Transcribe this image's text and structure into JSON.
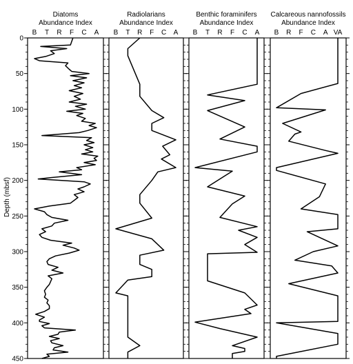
{
  "ylabel": "Depth (mbsf)",
  "depth_ticks": [
    "0",
    "50",
    "100",
    "150",
    "200",
    "250",
    "300",
    "350",
    "400",
    "450"
  ],
  "chart_data": [
    {
      "type": "line",
      "title_lines": [
        "Diatoms",
        "Abundance  Index"
      ],
      "categories": [
        "B",
        "T",
        "R",
        "F",
        "C",
        "A"
      ],
      "depth_range": [
        0,
        450
      ],
      "series": [
        {
          "points": [
            [
              0,
              3.1
            ],
            [
              10,
              2.9
            ],
            [
              12,
              0.5
            ],
            [
              15,
              2.6
            ],
            [
              18,
              1.3
            ],
            [
              22,
              1.6
            ],
            [
              26,
              0.9
            ],
            [
              29,
              0.0
            ],
            [
              32,
              0.4
            ],
            [
              35,
              2.7
            ],
            [
              39,
              2.5
            ],
            [
              44,
              2.8
            ],
            [
              47,
              3.0
            ],
            [
              50,
              4.4
            ],
            [
              53,
              2.9
            ],
            [
              56,
              4.2
            ],
            [
              60,
              3.1
            ],
            [
              63,
              4.0
            ],
            [
              67,
              3.2
            ],
            [
              70,
              3.8
            ],
            [
              74,
              2.8
            ],
            [
              78,
              3.9
            ],
            [
              82,
              3.2
            ],
            [
              86,
              3.7
            ],
            [
              90,
              2.8
            ],
            [
              93,
              4.2
            ],
            [
              96,
              3.3
            ],
            [
              100,
              4.1
            ],
            [
              103,
              2.6
            ],
            [
              106,
              3.9
            ],
            [
              109,
              3.4
            ],
            [
              113,
              4.1
            ],
            [
              117,
              3.8
            ],
            [
              120,
              4.9
            ],
            [
              123,
              4.4
            ],
            [
              126,
              5.0
            ],
            [
              130,
              4.3
            ],
            [
              133,
              3.6
            ],
            [
              137,
              0.6
            ],
            [
              140,
              4.6
            ],
            [
              144,
              4.2
            ],
            [
              147,
              4.8
            ],
            [
              150,
              4.0
            ],
            [
              154,
              4.7
            ],
            [
              157,
              4.1
            ],
            [
              160,
              4.7
            ],
            [
              163,
              3.8
            ],
            [
              166,
              5.1
            ],
            [
              169,
              4.8
            ],
            [
              172,
              5.0
            ],
            [
              175,
              4.0
            ],
            [
              178,
              4.9
            ],
            [
              182,
              3.4
            ],
            [
              185,
              3.8
            ],
            [
              188,
              2.0
            ],
            [
              192,
              3.8
            ],
            [
              196,
              1.4
            ],
            [
              198,
              0.3
            ],
            [
              202,
              4.0
            ],
            [
              205,
              4.5
            ],
            [
              209,
              4.0
            ],
            [
              212,
              3.5
            ],
            [
              216,
              4.0
            ],
            [
              220,
              3.2
            ],
            [
              224,
              3.5
            ],
            [
              228,
              3.2
            ],
            [
              232,
              2.9
            ],
            [
              236,
              1.2
            ],
            [
              240,
              0.0
            ],
            [
              244,
              0.8
            ],
            [
              248,
              1.0
            ],
            [
              252,
              1.4
            ],
            [
              256,
              2.7
            ],
            [
              260,
              1.6
            ],
            [
              264,
              1.4
            ],
            [
              268,
              0.6
            ],
            [
              272,
              0.9
            ],
            [
              276,
              0.4
            ],
            [
              280,
              0.6
            ],
            [
              284,
              1.3
            ],
            [
              288,
              3.0
            ],
            [
              291,
              2.3
            ],
            [
              295,
              3.2
            ],
            [
              298,
              3.6
            ],
            [
              302,
              2.8
            ],
            [
              306,
              1.7
            ],
            [
              310,
              1.2
            ],
            [
              314,
              1.0
            ],
            [
              318,
              1.1
            ],
            [
              322,
              1.9
            ],
            [
              326,
              1.4
            ],
            [
              330,
              2.3
            ],
            [
              334,
              1.1
            ],
            [
              338,
              1.4
            ],
            [
              342,
              1.3
            ],
            [
              346,
              1.2
            ],
            [
              350,
              1.0
            ],
            [
              355,
              0.8
            ],
            [
              360,
              0.9
            ],
            [
              364,
              0.8
            ],
            [
              368,
              1.1
            ],
            [
              372,
              1.0
            ],
            [
              376,
              1.2
            ],
            [
              380,
              1.2
            ],
            [
              384,
              0.8
            ],
            [
              388,
              0.1
            ],
            [
              392,
              0.8
            ],
            [
              396,
              0.4
            ],
            [
              398,
              0.4
            ],
            [
              401,
              1.2
            ],
            [
              404,
              0.6
            ],
            [
              407,
              0.8
            ],
            [
              410,
              3.3
            ],
            [
              413,
              2.0
            ],
            [
              416,
              1.9
            ],
            [
              419,
              1.2
            ],
            [
              422,
              2.0
            ],
            [
              425,
              1.3
            ],
            [
              428,
              1.4
            ],
            [
              432,
              2.3
            ],
            [
              435,
              1.6
            ],
            [
              438,
              1.5
            ],
            [
              441,
              2.7
            ],
            [
              444,
              1.0
            ],
            [
              447,
              1.2
            ],
            [
              450,
              0.6
            ]
          ]
        }
      ]
    },
    {
      "type": "line",
      "title_lines": [
        "Radiolarians",
        "Abundance  Index"
      ],
      "categories": [
        "B",
        "T",
        "R",
        "F",
        "C",
        "A"
      ],
      "depth_range": [
        0,
        450
      ],
      "series": [
        {
          "points": [
            [
              0,
              2.0
            ],
            [
              15,
              1.0
            ],
            [
              25,
              1.0
            ],
            [
              65,
              2.0
            ],
            [
              82,
              2.0
            ],
            [
              102,
              3.0
            ],
            [
              112,
              4.0
            ],
            [
              120,
              3.0
            ],
            [
              130,
              3.0
            ],
            [
              143,
              5.0
            ],
            [
              152,
              3.9
            ],
            [
              164,
              4.5
            ],
            [
              170,
              3.8
            ],
            [
              182,
              5.0
            ],
            [
              188,
              3.5
            ],
            [
              200,
              3.0
            ],
            [
              220,
              2.0
            ],
            [
              232,
              2.0
            ],
            [
              253,
              3.0
            ],
            [
              268,
              0.0
            ],
            [
              282,
              3.0
            ],
            [
              298,
              4.0
            ],
            [
              305,
              2.0
            ],
            [
              318,
              2.0
            ],
            [
              325,
              3.0
            ],
            [
              335,
              3.0
            ],
            [
              340,
              1.0
            ],
            [
              358,
              0.0
            ],
            [
              362,
              1.0
            ],
            [
              420,
              1.0
            ],
            [
              432,
              2.0
            ],
            [
              441,
              1.0
            ],
            [
              450,
              1.0
            ]
          ]
        }
      ]
    },
    {
      "type": "line",
      "title_lines": [
        "Benthic foraminifers",
        "Abundance  Index"
      ],
      "categories": [
        "B",
        "T",
        "R",
        "F",
        "C",
        "A"
      ],
      "depth_range": [
        0,
        450
      ],
      "series": [
        {
          "points": [
            [
              0,
              5.0
            ],
            [
              65,
              5.0
            ],
            [
              80,
              1.0
            ],
            [
              88,
              4.0
            ],
            [
              102,
              1.0
            ],
            [
              125,
              4.0
            ],
            [
              142,
              2.0
            ],
            [
              152,
              5.0
            ],
            [
              160,
              5.0
            ],
            [
              182,
              0.0
            ],
            [
              187,
              3.0
            ],
            [
              209,
              1.0
            ],
            [
              222,
              4.0
            ],
            [
              233,
              3.0
            ],
            [
              252,
              2.0
            ],
            [
              265,
              5.0
            ],
            [
              270,
              3.5
            ],
            [
              280,
              5.0
            ],
            [
              290,
              4.0
            ],
            [
              301,
              5.0
            ],
            [
              303,
              1.0
            ],
            [
              315,
              1.0
            ],
            [
              341,
              1.0
            ],
            [
              358,
              4.0
            ],
            [
              375,
              5.0
            ],
            [
              381,
              4.0
            ],
            [
              387,
              4.5
            ],
            [
              399,
              0.0
            ],
            [
              408,
              2.0
            ],
            [
              420,
              5.0
            ],
            [
              432,
              3.0
            ],
            [
              436,
              4.0
            ],
            [
              440,
              4.0
            ],
            [
              443,
              3.0
            ],
            [
              450,
              3.0
            ]
          ]
        }
      ]
    },
    {
      "type": "line",
      "title_lines": [
        "Calcareous nannofossils",
        "Abundance  Index"
      ],
      "categories": [
        "B",
        "R",
        "F",
        "C",
        "A",
        "VA"
      ],
      "depth_range": [
        0,
        450
      ],
      "series": [
        {
          "points": [
            [
              0,
              5.0
            ],
            [
              64,
              5.0
            ],
            [
              78,
              2.0
            ],
            [
              98,
              0.0
            ],
            [
              101,
              4.0
            ],
            [
              120,
              0.5
            ],
            [
              132,
              2.0
            ],
            [
              135,
              1.5
            ],
            [
              145,
              1.0
            ],
            [
              158,
              4.0
            ],
            [
              162,
              5.0
            ],
            [
              182,
              0.0
            ],
            [
              186,
              0.0
            ],
            [
              205,
              4.0
            ],
            [
              223,
              3.5
            ],
            [
              240,
              2.0
            ],
            [
              248,
              5.0
            ],
            [
              268,
              5.0
            ],
            [
              272,
              2.5
            ],
            [
              292,
              5.0
            ],
            [
              300,
              3.0
            ],
            [
              312,
              1.5
            ],
            [
              320,
              4.5
            ],
            [
              330,
              5.0
            ],
            [
              345,
              1.0
            ],
            [
              362,
              5.0
            ],
            [
              398,
              5.0
            ],
            [
              400,
              0.0
            ],
            [
              415,
              5.0
            ],
            [
              430,
              5.0
            ],
            [
              447,
              0.0
            ],
            [
              450,
              0.0
            ]
          ]
        }
      ]
    }
  ]
}
